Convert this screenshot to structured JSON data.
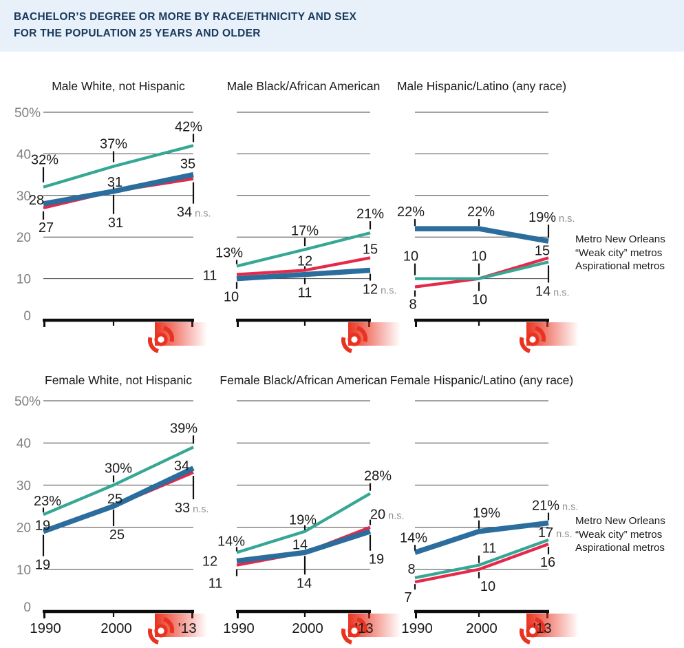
{
  "header": {
    "title_line1": "BACHELOR’S DEGREE OR MORE BY RACE/ETHNICITY AND SEX",
    "title_line2": "FOR THE POPULATION 25 YEARS AND OLDER"
  },
  "legend": {
    "items": [
      "Metro New Orleans",
      "“Weak city” metros",
      "Aspirational metros"
    ]
  },
  "colors": {
    "header_bg": "#e8f1f9",
    "header_text": "#17395d",
    "neworleans": "#2b6d9c",
    "weakcity": "#e5294a",
    "aspirational": "#36a795",
    "katrina_red": "#e93320",
    "grid": "#444444",
    "axis": "#0d0d0d",
    "label": "#1a1a1a",
    "y_label": "#7f7f7f",
    "ns": "#8f8f8f"
  },
  "chart_data": {
    "type": "line",
    "x": [
      1990,
      2000,
      2013
    ],
    "x_tick_labels": [
      "1990",
      "2000",
      "’13"
    ],
    "y_axis": {
      "ticks": [
        "50%",
        "40",
        "30",
        "20",
        "10",
        "0"
      ],
      "range": [
        0,
        50
      ],
      "grid": true
    },
    "series_names": [
      "Metro New Orleans",
      "“Weak city” metros",
      "Aspirational metros"
    ],
    "annotation_icon": "hurricane-katrina",
    "panels": [
      {
        "title": "Male White, not Hispanic",
        "slug": "male-white-not-hispanic",
        "series": [
          {
            "key": "neworleans",
            "name": "Metro New Orleans",
            "values": [
              28,
              31,
              35
            ],
            "labels": [
              {
                "text": "28",
                "dx": -10,
                "dy": -6
              },
              {
                "text": "31",
                "dx": 2,
                "dy": -14,
                "leader": [
                  -7,
                  -3
                ]
              },
              {
                "text": "35",
                "dx": -8,
                "dy": -16
              }
            ]
          },
          {
            "key": "weakcity",
            "name": "“Weak city” metros",
            "values": [
              27,
              31,
              34
            ],
            "labels": [
              {
                "text": "27",
                "dx": 4,
                "dy": 28,
                "leader": [
                  5,
                  17
                ]
              },
              {
                "text": "31",
                "dx": 3,
                "dy": 45,
                "leader": [
                  5,
                  33
                ]
              },
              {
                "text": "34",
                "suffix": "n.s.",
                "dx": -13,
                "dy": 48,
                "leader": [
                  5,
                  36
                ]
              }
            ]
          },
          {
            "key": "aspirational",
            "name": "Aspirational metros",
            "values": [
              32,
              37,
              42
            ],
            "labels": [
              {
                "text": "32%",
                "dx": 2,
                "dy": -40,
                "leader": [
                  -29,
                  -7
                ]
              },
              {
                "text": "37%",
                "dx": 0,
                "dy": -33,
                "leader": [
                  -22,
                  -6
                ]
              },
              {
                "text": "42%",
                "dx": -7,
                "dy": -28,
                "leader": [
                  -17,
                  -5
                ]
              }
            ]
          }
        ]
      },
      {
        "title": "Male Black/African American",
        "slug": "male-black-african-american",
        "series": [
          {
            "key": "neworleans",
            "name": "Metro New Orleans",
            "values": [
              10,
              11,
              12
            ],
            "labels": [
              {
                "text": "10",
                "dx": -8,
                "dy": 26,
                "leader": [
                  5,
                  15
                ]
              },
              {
                "text": "11",
                "dx": 0,
                "dy": 26,
                "leader": [
                  5,
                  14
                ]
              },
              {
                "text": "12",
                "suffix": "n.s.",
                "dx": 0,
                "dy": 27,
                "leader": [
                  5,
                  15
                ]
              }
            ]
          },
          {
            "key": "weakcity",
            "name": "“Weak city” metros",
            "values": [
              11,
              12,
              15
            ],
            "labels": [
              {
                "text": "11",
                "dx": -39,
                "dy": 1
              },
              {
                "text": "12",
                "dx": 0,
                "dy": -14,
                "leader": [
                  -6,
                  -2
                ]
              },
              {
                "text": "15",
                "dx": 0,
                "dy": -13
              }
            ]
          },
          {
            "key": "aspirational",
            "name": "Aspirational metros",
            "values": [
              13,
              17,
              21
            ],
            "labels": [
              {
                "text": "13%",
                "dx": -11,
                "dy": -20,
                "leader": [
                  -9,
                  -3
                ]
              },
              {
                "text": "17%",
                "dx": 0,
                "dy": -28,
                "leader": [
                  -17,
                  -5
                ]
              },
              {
                "text": "21%",
                "dx": 0,
                "dy": -28,
                "leader": [
                  -17,
                  -5
                ]
              }
            ]
          }
        ]
      },
      {
        "title": "Male Hispanic/Latino (any race)",
        "slug": "male-hispanic-latino",
        "series": [
          {
            "key": "neworleans",
            "name": "Metro New Orleans",
            "values": [
              22,
              22,
              19
            ],
            "labels": [
              {
                "text": "22%",
                "dx": -6,
                "dy": -25,
                "leader": [
                  -14,
                  -4
                ]
              },
              {
                "text": "22%",
                "dx": 3,
                "dy": -25,
                "leader": [
                  -14,
                  -4
                ]
              },
              {
                "text": "19%",
                "suffix": "n.s.",
                "dx": -9,
                "dy": -35,
                "leader": [
                  -24,
                  -5
                ]
              }
            ]
          },
          {
            "key": "weakcity",
            "name": "“Weak city” metros",
            "values": [
              8,
              10,
              15
            ],
            "labels": [
              {
                "text": "8",
                "dx": -3,
                "dy": 25,
                "leader": [
                  5,
                  14
                ]
              },
              {
                "text": "10",
                "dx": 1,
                "dy": 30,
                "leader": [
                  5,
                  18
                ]
              },
              {
                "text": "15",
                "dx": -9,
                "dy": -11
              }
            ]
          },
          {
            "key": "aspirational",
            "name": "Aspirational metros",
            "values": [
              10,
              10,
              14
            ],
            "labels": [
              {
                "text": "10",
                "dx": -6,
                "dy": -33,
                "leader": [
                  -22,
                  -5
                ]
              },
              {
                "text": "10",
                "dx": 0,
                "dy": -33,
                "leader": [
                  -22,
                  -5
                ]
              },
              {
                "text": "14",
                "suffix": "n.s.",
                "dx": -8,
                "dy": 42,
                "leader": [
                  5,
                  30
                ]
              }
            ]
          }
        ]
      },
      {
        "title": "Female White, not Hispanic",
        "slug": "female-white-not-hispanic",
        "series": [
          {
            "key": "neworleans",
            "name": "Metro New Orleans",
            "values": [
              19,
              25,
              34
            ],
            "labels": [
              {
                "text": "19",
                "dx": -1,
                "dy": -9
              },
              {
                "text": "25",
                "dx": 2,
                "dy": -11
              },
              {
                "text": "34",
                "dx": -17,
                "dy": -4
              }
            ]
          },
          {
            "key": "weakcity",
            "name": "“Weak city” metros",
            "values": [
              19,
              25,
              33
            ],
            "labels": [
              {
                "text": "19",
                "dx": -1,
                "dy": 48,
                "leader": [
                  5,
                  36
                ]
              },
              {
                "text": "25",
                "dx": 5,
                "dy": 41,
                "leader": [
                  5,
                  29
                ]
              },
              {
                "text": "33",
                "suffix": "n.s.",
                "dx": -16,
                "dy": 51,
                "leader": [
                  5,
                  39
                ]
              }
            ]
          },
          {
            "key": "aspirational",
            "name": "Aspirational metros",
            "values": [
              23,
              30,
              39
            ],
            "labels": [
              {
                "text": "23%",
                "dx": 6,
                "dy": -20,
                "leader": [
                  -10,
                  -3
                ]
              },
              {
                "text": "30%",
                "dx": 7,
                "dy": -25,
                "leader": [
                  -14,
                  -4
                ]
              },
              {
                "text": "39%",
                "dx": -14,
                "dy": -28,
                "leader": [
                  -17,
                  -5
                ]
              }
            ]
          }
        ]
      },
      {
        "title": "Female Black/African American",
        "slug": "female-black-african-american",
        "series": [
          {
            "key": "neworleans",
            "name": "Metro New Orleans",
            "values": [
              12,
              14,
              19
            ],
            "labels": [
              {
                "text": "12",
                "dx": -39,
                "dy": 0
              },
              {
                "text": "14",
                "dx": -7,
                "dy": -12
              },
              {
                "text": "19",
                "dx": 9,
                "dy": 40,
                "leader": [
                  5,
                  28
                ]
              }
            ]
          },
          {
            "key": "weakcity",
            "name": "“Weak city” metros",
            "values": [
              11,
              14,
              20
            ],
            "labels": [
              {
                "text": "11",
                "dx": -31,
                "dy": 26,
                "leader": [
                  6,
                  16
                ]
              },
              {
                "text": "14",
                "dx": -1,
                "dy": 44,
                "leader": [
                  5,
                  32
                ]
              },
              {
                "text": "20",
                "suffix": "n.s.",
                "dx": 11,
                "dy": -19,
                "leader": [
                  -11,
                  -3
                ]
              }
            ]
          },
          {
            "key": "aspirational",
            "name": "Aspirational metros",
            "values": [
              14,
              19,
              28
            ],
            "labels": [
              {
                "text": "14%",
                "dx": -8,
                "dy": -17,
                "leader": [
                  -8,
                  -2
                ]
              },
              {
                "text": "19%",
                "dx": -3,
                "dy": -17,
                "leader": [
                  -9,
                  -2
                ]
              },
              {
                "text": "28%",
                "dx": 11,
                "dy": -26,
                "leader": [
                  -15,
                  -4
                ]
              }
            ]
          }
        ]
      },
      {
        "title": "Female Hispanic/Latino (any race)",
        "slug": "female-hispanic-latino",
        "series": [
          {
            "key": "neworleans",
            "name": "Metro New Orleans",
            "values": [
              14,
              19,
              21
            ],
            "labels": [
              {
                "text": "14%",
                "dx": -2,
                "dy": -22,
                "leader": [
                  -11,
                  -3
                ]
              },
              {
                "text": "19%",
                "dx": 11,
                "dy": -27,
                "leader": [
                  -16,
                  -4
                ]
              },
              {
                "text": "21%",
                "suffix": "n.s.",
                "dx": -4,
                "dy": -26,
                "leader": [
                  -15,
                  -4
                ]
              }
            ]
          },
          {
            "key": "weakcity",
            "name": "“Weak city” metros",
            "values": [
              7,
              10,
              16
            ],
            "labels": [
              {
                "text": "7",
                "dx": -10,
                "dy": 22,
                "leader": [
                  3,
                  11
                ]
              },
              {
                "text": "10",
                "dx": 13,
                "dy": 24,
                "leader": [
                  4,
                  13
                ]
              },
              {
                "text": "16",
                "dx": -1,
                "dy": 26,
                "leader": [
                  4,
                  15
                ]
              }
            ]
          },
          {
            "key": "aspirational",
            "name": "Aspirational metros",
            "values": [
              8,
              11,
              17
            ],
            "labels": [
              {
                "text": "8",
                "dx": -5,
                "dy": -13
              },
              {
                "text": "11",
                "dx": 15,
                "dy": -25,
                "leader": [
                  -14,
                  -3
                ]
              },
              {
                "text": "17",
                "suffix": "n.s.",
                "dx": -4,
                "dy": -11
              }
            ]
          }
        ]
      }
    ]
  }
}
